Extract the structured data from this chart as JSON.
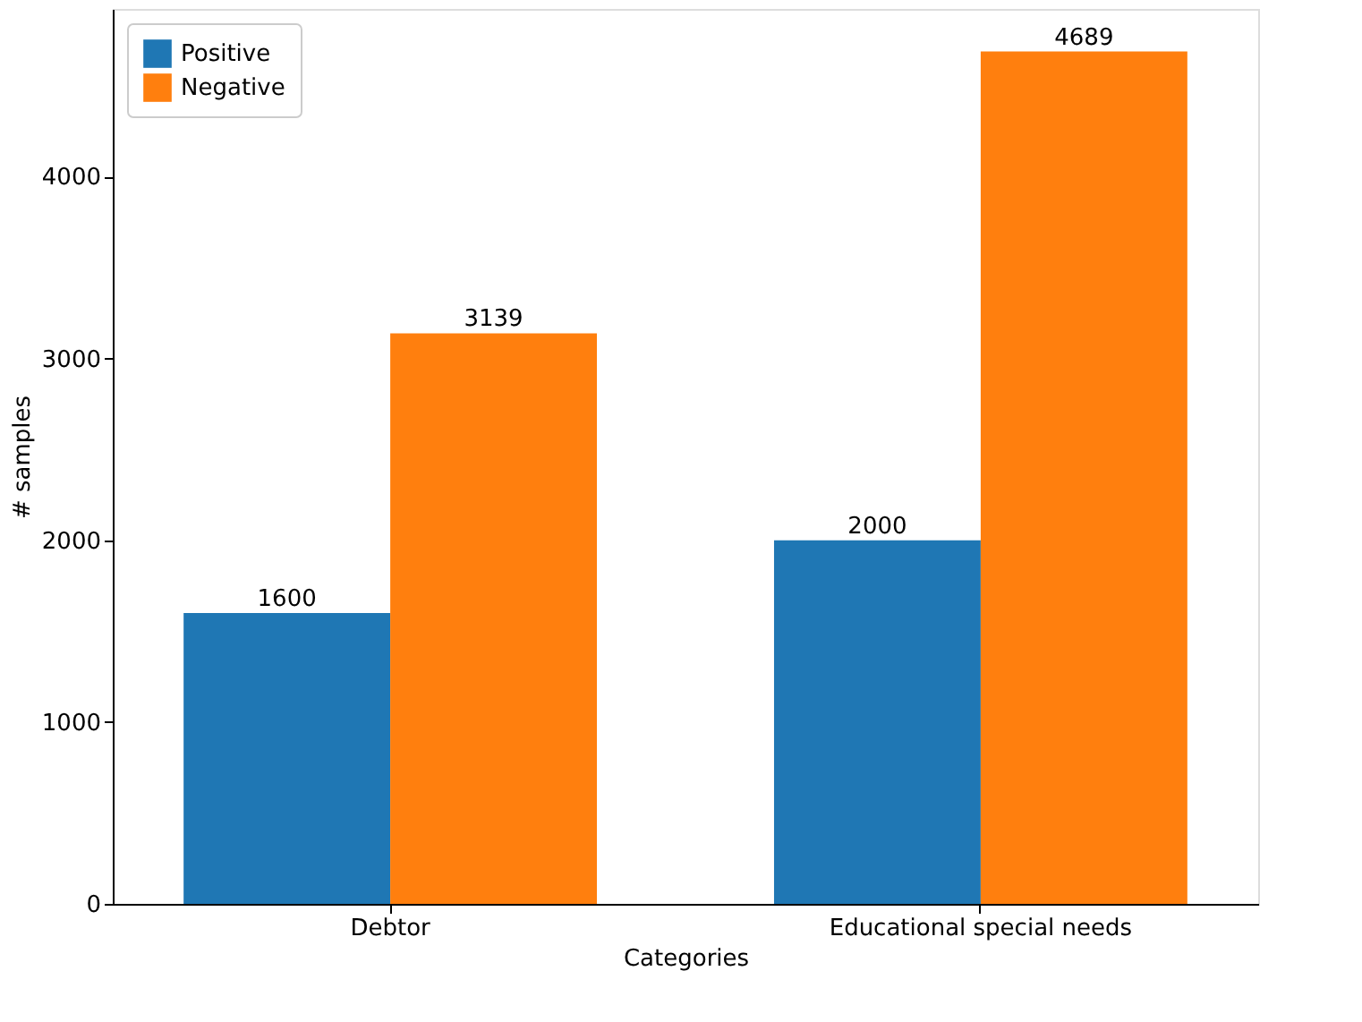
{
  "chart_data": {
    "type": "bar",
    "xlabel": "Categories",
    "ylabel": "# samples",
    "categories": [
      "Debtor",
      "Educational special needs"
    ],
    "series": [
      {
        "name": "Positive",
        "color": "#1f77b4",
        "values": [
          1600,
          2000
        ]
      },
      {
        "name": "Negative",
        "color": "#ff7f0e",
        "values": [
          3139,
          4689
        ]
      }
    ],
    "ylim": [
      0,
      4923
    ],
    "yticks": [
      0,
      1000,
      2000,
      3000,
      4000
    ],
    "grid": false,
    "legend": "top left",
    "data_labels": true
  }
}
